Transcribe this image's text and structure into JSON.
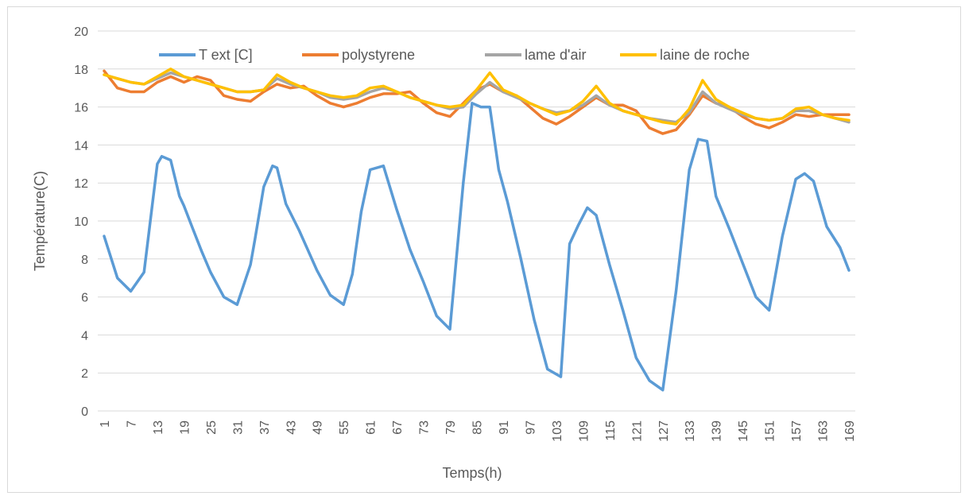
{
  "chart_data": {
    "type": "line",
    "title": "",
    "xlabel": "Temps(h)",
    "ylabel": "Température(C)",
    "ylim": [
      0,
      20
    ],
    "y_ticks": [
      0,
      2,
      4,
      6,
      8,
      10,
      12,
      14,
      16,
      18,
      20
    ],
    "x_ticks": [
      "1",
      "7",
      "13",
      "19",
      "25",
      "31",
      "37",
      "43",
      "49",
      "55",
      "61",
      "67",
      "73",
      "79",
      "85",
      "91",
      "97",
      "103",
      "109",
      "115",
      "121",
      "127",
      "133",
      "139",
      "145",
      "151",
      "157",
      "163",
      "169"
    ],
    "xlim": [
      1,
      169
    ],
    "grid": "horizontal",
    "legend_position": "top",
    "series": [
      {
        "name": "T ext [C]",
        "color": "#5b9bd5",
        "x": [
          1,
          4,
          7,
          10,
          13,
          14,
          16,
          18,
          19,
          21,
          23,
          25,
          28,
          31,
          34,
          35,
          37,
          39,
          40,
          42,
          45,
          49,
          52,
          55,
          57,
          59,
          61,
          64,
          67,
          70,
          73,
          76,
          79,
          82,
          84,
          86,
          88,
          90,
          92,
          95,
          98,
          101,
          104,
          106,
          108,
          110,
          112,
          115,
          118,
          121,
          124,
          127,
          130,
          133,
          135,
          137,
          139,
          142,
          145,
          148,
          151,
          154,
          157,
          159,
          161,
          164,
          167,
          169
        ],
        "y": [
          9.2,
          7.0,
          6.3,
          7.3,
          13.0,
          13.4,
          13.2,
          11.3,
          10.8,
          9.6,
          8.4,
          7.3,
          6.0,
          5.6,
          7.7,
          9.0,
          11.8,
          12.9,
          12.8,
          10.9,
          9.5,
          7.4,
          6.1,
          5.6,
          7.2,
          10.5,
          12.7,
          12.9,
          10.6,
          8.5,
          6.8,
          5.0,
          4.3,
          12.0,
          16.2,
          16.0,
          16.0,
          12.7,
          11.0,
          8.0,
          4.8,
          2.2,
          1.8,
          8.8,
          9.8,
          10.7,
          10.3,
          7.7,
          5.3,
          2.8,
          1.6,
          1.1,
          6.3,
          12.7,
          14.3,
          14.2,
          11.3,
          9.6,
          7.8,
          6.0,
          5.3,
          9.2,
          12.2,
          12.5,
          12.1,
          9.7,
          8.6,
          7.4
        ]
      },
      {
        "name": "polystyrene",
        "color": "#ed7d31",
        "x": [
          1,
          4,
          7,
          10,
          13,
          16,
          19,
          22,
          25,
          28,
          31,
          34,
          37,
          40,
          43,
          46,
          49,
          52,
          55,
          58,
          61,
          64,
          67,
          70,
          73,
          76,
          79,
          82,
          85,
          88,
          91,
          94,
          97,
          100,
          103,
          106,
          109,
          112,
          115,
          118,
          121,
          124,
          127,
          130,
          133,
          136,
          139,
          142,
          145,
          148,
          151,
          154,
          157,
          160,
          163,
          166,
          169
        ],
        "y": [
          17.9,
          17.0,
          16.8,
          16.8,
          17.3,
          17.6,
          17.3,
          17.6,
          17.4,
          16.6,
          16.4,
          16.3,
          16.8,
          17.2,
          17.0,
          17.1,
          16.6,
          16.2,
          16.0,
          16.2,
          16.5,
          16.7,
          16.7,
          16.8,
          16.2,
          15.7,
          15.5,
          16.2,
          16.9,
          17.2,
          16.8,
          16.6,
          16.0,
          15.4,
          15.1,
          15.5,
          16.0,
          16.5,
          16.1,
          16.1,
          15.8,
          14.9,
          14.6,
          14.8,
          15.6,
          16.6,
          16.2,
          16.0,
          15.5,
          15.1,
          14.9,
          15.2,
          15.6,
          15.5,
          15.6,
          15.6,
          15.6
        ]
      },
      {
        "name": "lame d'air",
        "color": "#a5a5a5",
        "x": [
          1,
          4,
          7,
          10,
          13,
          16,
          19,
          22,
          25,
          28,
          31,
          34,
          37,
          40,
          43,
          46,
          49,
          52,
          55,
          58,
          61,
          64,
          67,
          70,
          73,
          76,
          79,
          82,
          85,
          88,
          91,
          94,
          97,
          100,
          103,
          106,
          109,
          112,
          115,
          118,
          121,
          124,
          127,
          130,
          133,
          136,
          139,
          142,
          145,
          148,
          151,
          154,
          157,
          160,
          163,
          166,
          169
        ],
        "y": [
          17.7,
          17.5,
          17.3,
          17.2,
          17.5,
          17.8,
          17.6,
          17.4,
          17.2,
          17.0,
          16.8,
          16.8,
          16.9,
          17.5,
          17.2,
          17.0,
          16.8,
          16.5,
          16.4,
          16.5,
          16.8,
          17.0,
          16.8,
          16.5,
          16.3,
          16.1,
          15.9,
          16.0,
          16.7,
          17.3,
          16.8,
          16.5,
          16.2,
          15.9,
          15.7,
          15.8,
          16.1,
          16.6,
          16.1,
          15.8,
          15.6,
          15.4,
          15.3,
          15.2,
          15.7,
          16.8,
          16.2,
          15.9,
          15.6,
          15.4,
          15.3,
          15.4,
          15.8,
          15.8,
          15.6,
          15.4,
          15.2
        ]
      },
      {
        "name": "laine de roche",
        "color": "#ffc000",
        "x": [
          1,
          4,
          7,
          10,
          13,
          16,
          19,
          22,
          25,
          28,
          31,
          34,
          37,
          40,
          43,
          46,
          49,
          52,
          55,
          58,
          61,
          64,
          67,
          70,
          73,
          76,
          79,
          82,
          85,
          88,
          91,
          94,
          97,
          100,
          103,
          106,
          109,
          112,
          115,
          118,
          121,
          124,
          127,
          130,
          133,
          136,
          139,
          142,
          145,
          148,
          151,
          154,
          157,
          160,
          163,
          166,
          169
        ],
        "y": [
          17.7,
          17.5,
          17.3,
          17.2,
          17.6,
          18.0,
          17.6,
          17.4,
          17.2,
          17.0,
          16.8,
          16.8,
          16.9,
          17.7,
          17.3,
          17.0,
          16.8,
          16.6,
          16.5,
          16.6,
          17.0,
          17.1,
          16.8,
          16.5,
          16.3,
          16.1,
          16.0,
          16.1,
          16.9,
          17.8,
          16.9,
          16.6,
          16.2,
          15.9,
          15.6,
          15.8,
          16.3,
          17.1,
          16.2,
          15.8,
          15.6,
          15.4,
          15.2,
          15.1,
          15.9,
          17.4,
          16.4,
          16.0,
          15.7,
          15.4,
          15.3,
          15.4,
          15.9,
          16.0,
          15.6,
          15.4,
          15.3
        ]
      }
    ]
  }
}
